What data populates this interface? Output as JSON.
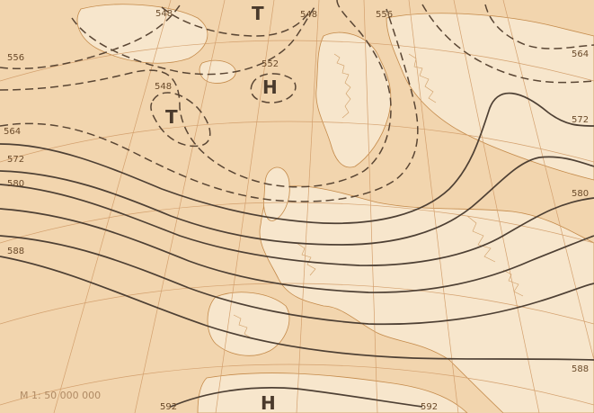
{
  "map": {
    "scale_text": "M 1: 50 000 000",
    "pressure_centers": [
      {
        "id": "low-north",
        "symbol": "T"
      },
      {
        "id": "high-north",
        "symbol": "H"
      },
      {
        "id": "low-west",
        "symbol": "T"
      },
      {
        "id": "high-south",
        "symbol": "H"
      }
    ],
    "contour_labels": [
      {
        "id": "548-top",
        "text": "548"
      },
      {
        "id": "548-top-right",
        "text": "548"
      },
      {
        "id": "556-top",
        "text": "556"
      },
      {
        "id": "564-top-right",
        "text": "564"
      },
      {
        "id": "556-left",
        "text": "556"
      },
      {
        "id": "552",
        "text": "552"
      },
      {
        "id": "548-left",
        "text": "548"
      },
      {
        "id": "564-left",
        "text": "564"
      },
      {
        "id": "572-left",
        "text": "572"
      },
      {
        "id": "580-left",
        "text": "580"
      },
      {
        "id": "588-left",
        "text": "588"
      },
      {
        "id": "572-right",
        "text": "572"
      },
      {
        "id": "580-right",
        "text": "580"
      },
      {
        "id": "588-right",
        "text": "588"
      },
      {
        "id": "592-left",
        "text": "592"
      },
      {
        "id": "592-right",
        "text": "592"
      }
    ],
    "colors": {
      "paper": "#f2d5ae",
      "land": "#f7e6cc",
      "coast": "#c48a4a",
      "graticule": "#d3a06e",
      "solid_contour": "#4e4034",
      "dashed_contour": "#5a4634"
    }
  }
}
